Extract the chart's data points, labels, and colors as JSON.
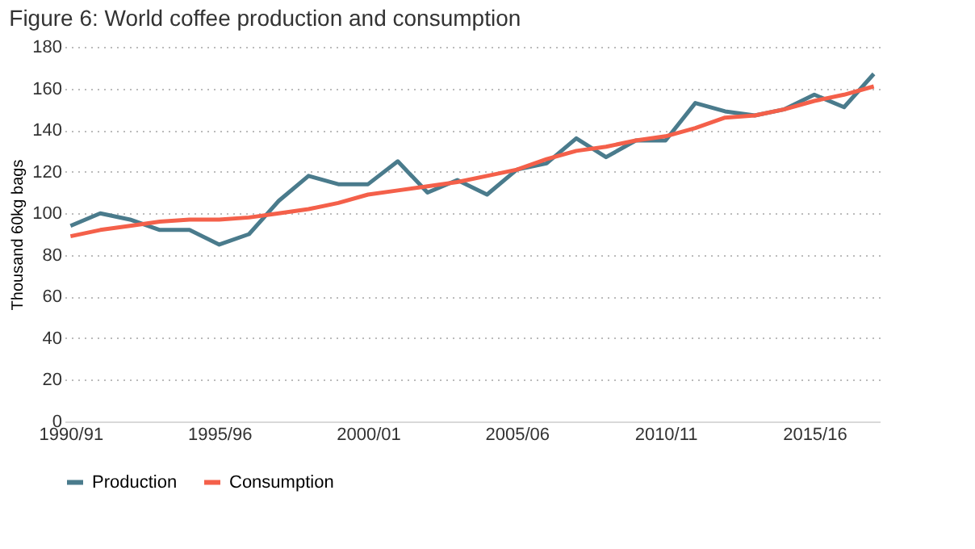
{
  "chart_data": {
    "type": "line",
    "title": "Figure 6: World coffee production  and consumption",
    "ylabel": "Thousand 60kg bags",
    "categories": [
      "1990/91",
      null,
      null,
      null,
      null,
      "1995/96",
      null,
      null,
      null,
      null,
      "2000/01",
      null,
      null,
      null,
      null,
      "2005/06",
      null,
      null,
      null,
      null,
      "2010/11",
      null,
      null,
      null,
      null,
      "2015/16",
      null,
      null
    ],
    "series": [
      {
        "name": "Production",
        "color": "#4a7b8c",
        "values": [
          94,
          100,
          97,
          92,
          92,
          85,
          90,
          106,
          118,
          114,
          114,
          125,
          110,
          116,
          109,
          121,
          124,
          136,
          127,
          135,
          135,
          153,
          149,
          147,
          150,
          157,
          151,
          167
        ]
      },
      {
        "name": "Consumption",
        "color": "#f4604a",
        "values": [
          89,
          92,
          94,
          96,
          97,
          97,
          98,
          100,
          102,
          105,
          109,
          111,
          113,
          115,
          118,
          121,
          126,
          130,
          132,
          135,
          137,
          141,
          146,
          147,
          150,
          154,
          157,
          161
        ]
      }
    ],
    "ylim": [
      0,
      180
    ],
    "yticks": [
      0,
      20,
      40,
      60,
      80,
      100,
      120,
      140,
      160,
      180
    ],
    "grid": "y",
    "legend": "bottom",
    "line_style": "solid",
    "marker": "none"
  }
}
